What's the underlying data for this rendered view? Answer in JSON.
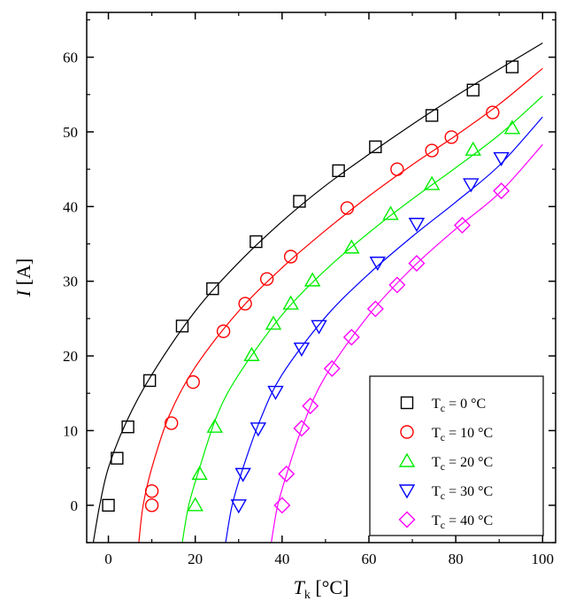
{
  "chart_data": {
    "type": "scatter",
    "xlabel": {
      "main": "T",
      "sub": "k",
      "unit": " [°C]"
    },
    "ylabel": {
      "main": "I",
      "unit": " [A]"
    },
    "xlim": [
      -5,
      103
    ],
    "ylim": [
      -5,
      66
    ],
    "xticks": [
      0,
      20,
      40,
      60,
      80,
      100
    ],
    "yticks": [
      0,
      10,
      20,
      30,
      40,
      50,
      60
    ],
    "grid": false,
    "legend_position": "bottom-right",
    "series": [
      {
        "name": "Tc = 0 °C",
        "legend": {
          "pre": "T",
          "sub": "c",
          "post": " = 0 °C"
        },
        "marker": "square",
        "color": "#000000",
        "points": [
          [
            0,
            0
          ],
          [
            2,
            6.3
          ],
          [
            4.5,
            10.5
          ],
          [
            9.5,
            16.7
          ],
          [
            17,
            24
          ],
          [
            24,
            29
          ],
          [
            34,
            35.3
          ],
          [
            44,
            40.7
          ],
          [
            53,
            44.8
          ],
          [
            61.5,
            48
          ],
          [
            74.5,
            52.2
          ],
          [
            84,
            55.6
          ],
          [
            93,
            58.7
          ]
        ],
        "fit": [
          [
            -3.5,
            -5
          ],
          [
            -2,
            0
          ],
          [
            0,
            5
          ],
          [
            4,
            11
          ],
          [
            10,
            17.5
          ],
          [
            20,
            26
          ],
          [
            30,
            32.5
          ],
          [
            40,
            38
          ],
          [
            50,
            42.8
          ],
          [
            60,
            47
          ],
          [
            70,
            51
          ],
          [
            80,
            54.8
          ],
          [
            90,
            58.4
          ],
          [
            100,
            61.9
          ]
        ]
      },
      {
        "name": "Tc = 10 °C",
        "legend": {
          "pre": "T",
          "sub": "c",
          "post": " = 10 °C"
        },
        "marker": "circle",
        "color": "#ff0000",
        "points": [
          [
            10,
            0
          ],
          [
            10,
            1.9
          ],
          [
            14.5,
            11
          ],
          [
            19.5,
            16.5
          ],
          [
            26.5,
            23.3
          ],
          [
            31.5,
            27
          ],
          [
            36.5,
            30.3
          ],
          [
            42,
            33.3
          ],
          [
            55,
            39.8
          ],
          [
            66.5,
            45
          ],
          [
            74.5,
            47.5
          ],
          [
            79,
            49.3
          ],
          [
            88.5,
            52.6
          ]
        ],
        "fit": [
          [
            7,
            -5
          ],
          [
            8,
            0
          ],
          [
            10,
            5
          ],
          [
            14,
            12
          ],
          [
            20,
            18.5
          ],
          [
            30,
            26
          ],
          [
            40,
            31.8
          ],
          [
            50,
            36.8
          ],
          [
            60,
            41.4
          ],
          [
            70,
            45.6
          ],
          [
            80,
            49.5
          ],
          [
            90,
            53.7
          ],
          [
            100,
            58.5
          ]
        ]
      },
      {
        "name": "Tc = 20 °C",
        "legend": {
          "pre": "T",
          "sub": "c",
          "post": " = 20 °C"
        },
        "marker": "triangle-up",
        "color": "#00ee00",
        "points": [
          [
            20,
            0
          ],
          [
            21,
            4.2
          ],
          [
            24.5,
            10.5
          ],
          [
            33,
            20.1
          ],
          [
            38,
            24.3
          ],
          [
            42,
            27
          ],
          [
            47,
            30.1
          ],
          [
            56,
            34.5
          ],
          [
            65,
            39
          ],
          [
            74.5,
            43
          ],
          [
            84,
            47.6
          ],
          [
            93,
            50.5
          ]
        ],
        "fit": [
          [
            17,
            -5
          ],
          [
            18.5,
            0
          ],
          [
            21,
            5
          ],
          [
            25,
            12
          ],
          [
            30,
            17.5
          ],
          [
            40,
            25.5
          ],
          [
            50,
            31.5
          ],
          [
            60,
            36.5
          ],
          [
            70,
            41
          ],
          [
            80,
            45.2
          ],
          [
            90,
            49.6
          ],
          [
            100,
            54.8
          ]
        ]
      },
      {
        "name": "Tc = 30 °C",
        "legend": {
          "pre": "T",
          "sub": "c",
          "post": " = 30 °C"
        },
        "marker": "triangle-down",
        "color": "#0000ff",
        "points": [
          [
            30,
            0
          ],
          [
            31,
            4.2
          ],
          [
            34.5,
            10.3
          ],
          [
            38.5,
            15.2
          ],
          [
            44.5,
            21
          ],
          [
            48.5,
            24
          ],
          [
            62,
            32.5
          ],
          [
            71,
            37.7
          ],
          [
            83.5,
            43
          ],
          [
            90.5,
            46.5
          ]
        ],
        "fit": [
          [
            27,
            -5
          ],
          [
            28.5,
            0
          ],
          [
            31,
            5
          ],
          [
            35,
            11.5
          ],
          [
            40,
            17.5
          ],
          [
            50,
            25.2
          ],
          [
            60,
            31
          ],
          [
            70,
            36
          ],
          [
            80,
            40.6
          ],
          [
            90,
            45.5
          ],
          [
            100,
            52
          ]
        ]
      },
      {
        "name": "Tc = 40 °C",
        "legend": {
          "pre": "T",
          "sub": "c",
          "post": " = 40 °C"
        },
        "marker": "diamond",
        "color": "#ff00ff",
        "points": [
          [
            40,
            0
          ],
          [
            41,
            4.2
          ],
          [
            44.5,
            10.3
          ],
          [
            46.5,
            13.3
          ],
          [
            51.5,
            18.3
          ],
          [
            56,
            22.5
          ],
          [
            61.5,
            26.3
          ],
          [
            66.5,
            29.5
          ],
          [
            71,
            32.4
          ],
          [
            81.5,
            37.5
          ],
          [
            90.5,
            42.1
          ]
        ],
        "fit": [
          [
            37.5,
            -5
          ],
          [
            39,
            0
          ],
          [
            41.5,
            5
          ],
          [
            45,
            11
          ],
          [
            50,
            17.3
          ],
          [
            60,
            25.5
          ],
          [
            70,
            31.8
          ],
          [
            80,
            37
          ],
          [
            90,
            41.8
          ],
          [
            100,
            48.3
          ]
        ]
      }
    ]
  }
}
